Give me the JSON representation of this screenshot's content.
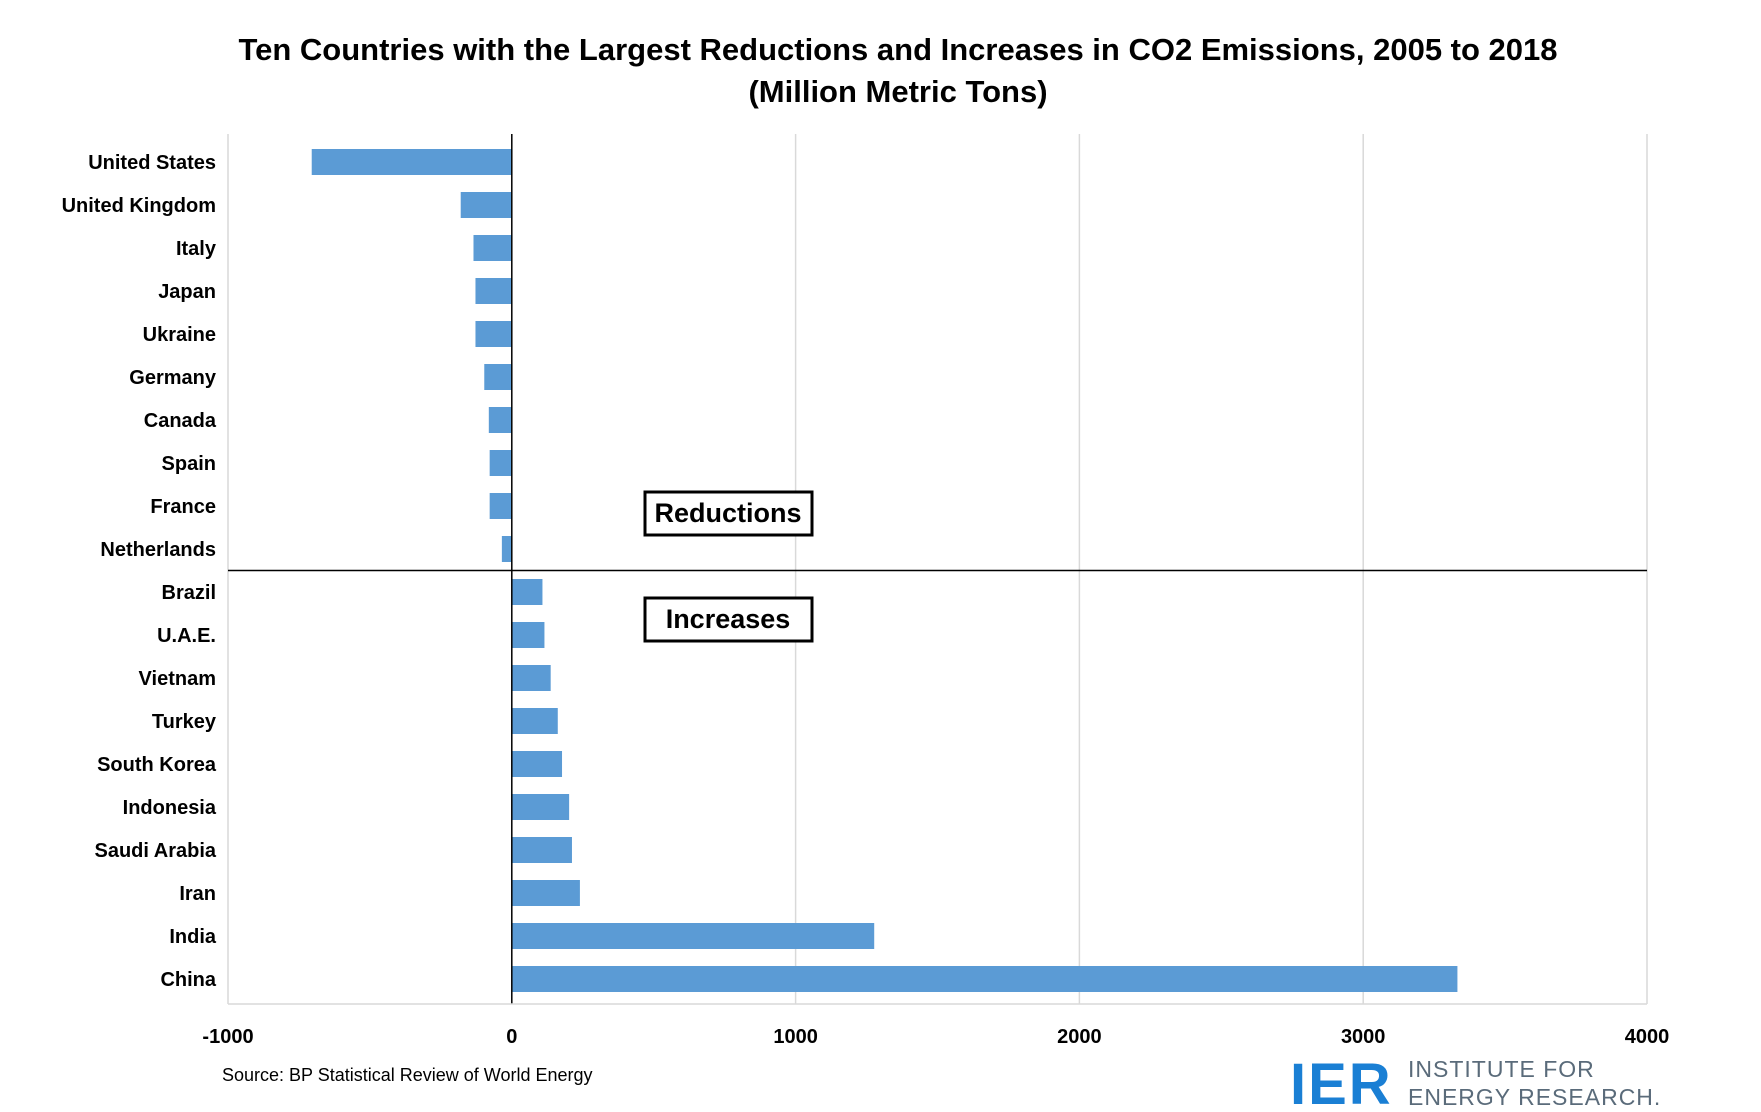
{
  "chart_data": {
    "type": "bar",
    "orientation": "horizontal",
    "title_lines": [
      "Ten Countries with the Largest Reductions and Increases in CO2 Emissions, 2005 to 2018",
      "(Million Metric Tons)"
    ],
    "categories": [
      "United States",
      "United Kingdom",
      "Italy",
      "Japan",
      "Ukraine",
      "Germany",
      "Canada",
      "Spain",
      "France",
      "Netherlands",
      "Brazil",
      "U.A.E.",
      "Vietnam",
      "Turkey",
      "South Korea",
      "Indonesia",
      "Saudi Arabia",
      "Iran",
      "India",
      "China"
    ],
    "values": [
      -705,
      -180,
      -135,
      -128,
      -128,
      -97,
      -81,
      -78,
      -78,
      -35,
      108,
      115,
      137,
      162,
      177,
      202,
      212,
      240,
      1277,
      3332
    ],
    "xlim": [
      -1000,
      4000
    ],
    "xticks": [
      -1000,
      0,
      1000,
      2000,
      3000,
      4000
    ],
    "xtick_labels": [
      "-1000",
      "0",
      "1000",
      "2000",
      "3000",
      "4000"
    ],
    "grid": "vertical",
    "bar_color": "#5b9bd5",
    "annotations": [
      "Reductions",
      "Increases"
    ],
    "source": "Source: BP Statistical Review of World Energy"
  },
  "logo": {
    "mark": "IER",
    "name_line1": "INSTITUTE FOR",
    "name_line2": "ENERGY RESEARCH.",
    "color": "#1a7fd4"
  }
}
